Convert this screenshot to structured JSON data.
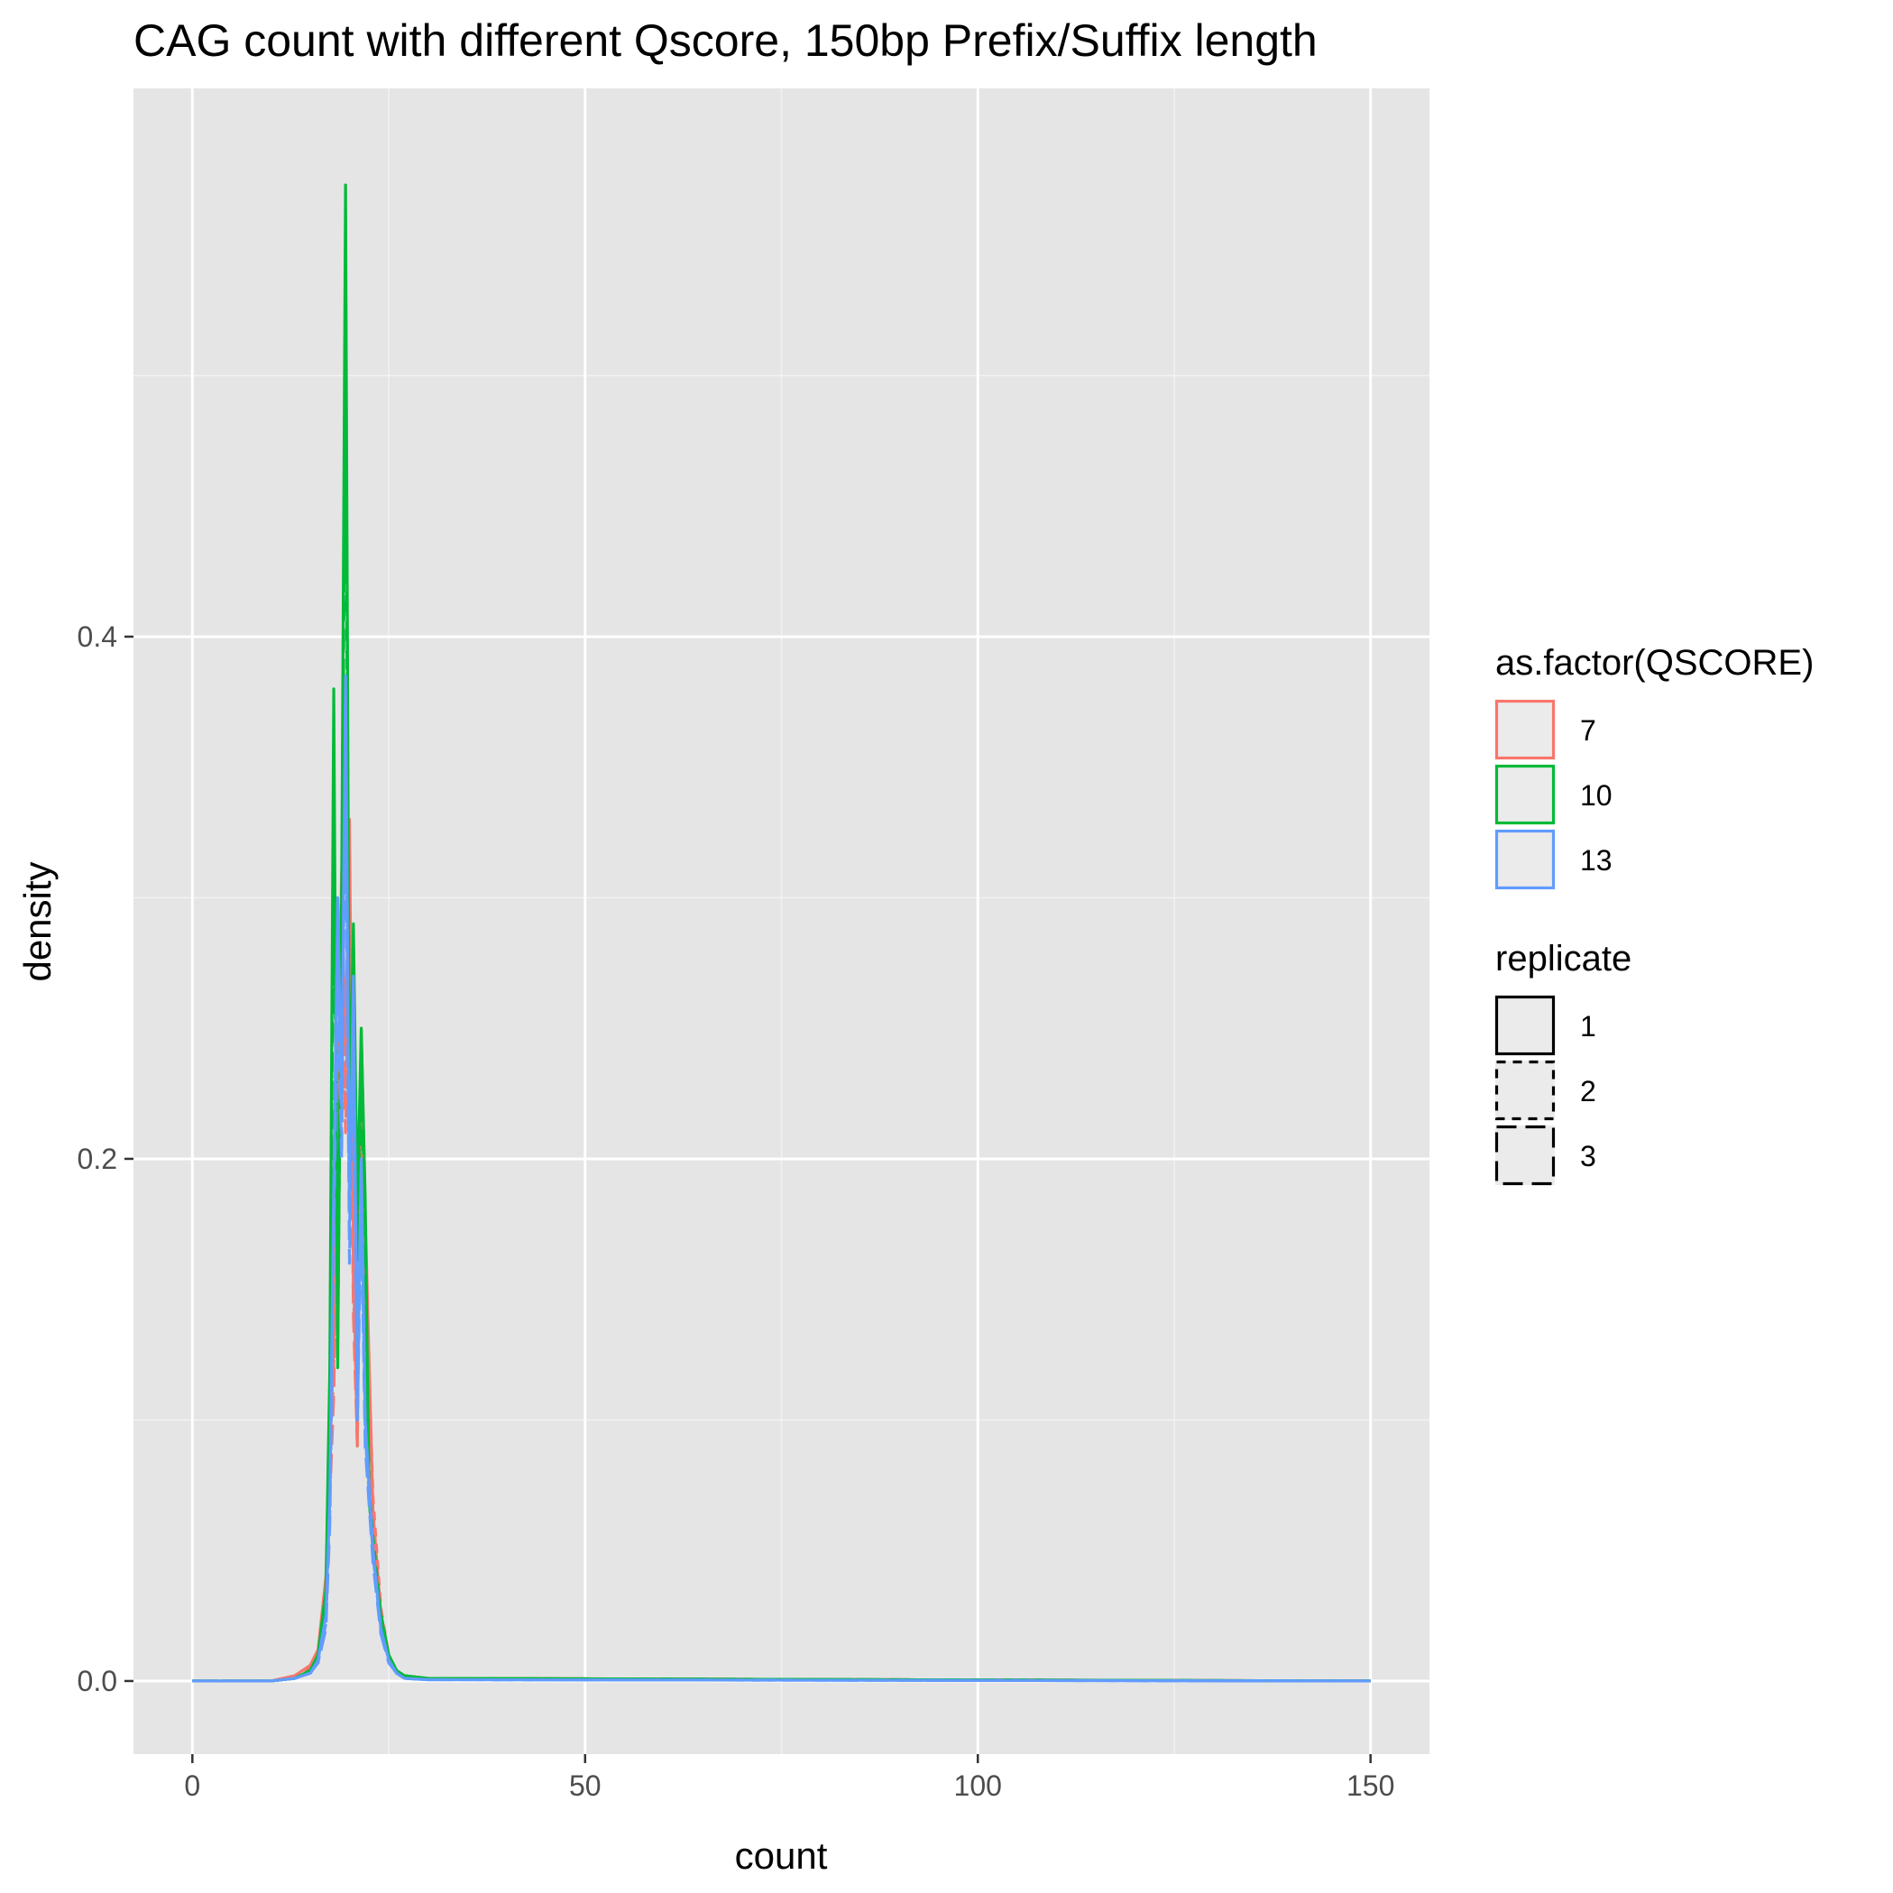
{
  "chart_data": {
    "type": "line",
    "title": "CAG count with different Qscore, 150bp Prefix/Suffix length",
    "xlabel": "count",
    "ylabel": "density",
    "xlim": [
      -7.5,
      157.5
    ],
    "ylim": [
      -0.028,
      0.61
    ],
    "x_ticks": [
      0,
      50,
      100,
      150
    ],
    "x_tick_labels": [
      "0",
      "50",
      "100",
      "150"
    ],
    "y_ticks": [
      0.0,
      0.2,
      0.4
    ],
    "y_tick_labels": [
      "0.0",
      "0.2",
      "0.4"
    ],
    "grid": true,
    "legend_position": "right",
    "legends": [
      {
        "title": "as.factor(QSCORE)",
        "kind": "color",
        "entries": [
          {
            "label": "7",
            "color": "#F8766D"
          },
          {
            "label": "10",
            "color": "#00BA38"
          },
          {
            "label": "13",
            "color": "#619CFF"
          }
        ]
      },
      {
        "title": "replicate",
        "kind": "linetype",
        "entries": [
          {
            "label": "1",
            "dash": "solid"
          },
          {
            "label": "2",
            "dash": "dashed"
          },
          {
            "label": "3",
            "dash": "longdash"
          }
        ]
      }
    ],
    "series": [
      {
        "qscore": "7",
        "replicate": "1",
        "color": "#F8766D",
        "dash": "solid",
        "x": [
          0,
          10,
          13,
          15,
          16,
          17,
          18,
          19,
          19.5,
          20,
          20.5,
          21,
          21.5,
          22,
          23,
          24,
          25,
          26,
          27,
          30,
          150
        ],
        "y": [
          0,
          0,
          0.002,
          0.006,
          0.012,
          0.04,
          0.13,
          0.31,
          0.24,
          0.33,
          0.16,
          0.09,
          0.25,
          0.18,
          0.065,
          0.025,
          0.009,
          0.004,
          0.002,
          0.001,
          0
        ]
      },
      {
        "qscore": "7",
        "replicate": "2",
        "color": "#F8766D",
        "dash": "dashed",
        "x": [
          0,
          10,
          13,
          15,
          16,
          17,
          18,
          19,
          19.5,
          20,
          20.5,
          21,
          21.5,
          22,
          23,
          24,
          25,
          26,
          27,
          30,
          150
        ],
        "y": [
          0,
          0,
          0.002,
          0.005,
          0.011,
          0.035,
          0.12,
          0.29,
          0.22,
          0.31,
          0.15,
          0.095,
          0.23,
          0.17,
          0.07,
          0.028,
          0.01,
          0.004,
          0.002,
          0.001,
          0
        ]
      },
      {
        "qscore": "7",
        "replicate": "3",
        "color": "#F8766D",
        "dash": "longdash",
        "x": [
          0,
          10,
          13,
          15,
          16,
          17,
          18,
          19,
          19.5,
          20,
          20.5,
          21,
          21.5,
          22,
          23,
          24,
          25,
          26,
          27,
          30,
          150
        ],
        "y": [
          0,
          0,
          0.002,
          0.005,
          0.01,
          0.03,
          0.11,
          0.28,
          0.21,
          0.3,
          0.14,
          0.09,
          0.22,
          0.16,
          0.06,
          0.024,
          0.008,
          0.003,
          0.002,
          0.001,
          0
        ]
      },
      {
        "qscore": "10",
        "replicate": "1",
        "color": "#00BA38",
        "dash": "solid",
        "x": [
          0,
          10,
          13,
          15,
          16,
          17,
          17.5,
          18,
          18.5,
          19,
          19.5,
          20,
          20.5,
          21,
          21.5,
          22,
          22.5,
          23,
          24,
          25,
          26,
          27,
          30,
          150
        ],
        "y": [
          0,
          0,
          0.001,
          0.004,
          0.01,
          0.035,
          0.12,
          0.38,
          0.12,
          0.3,
          0.573,
          0.21,
          0.29,
          0.18,
          0.25,
          0.185,
          0.07,
          0.05,
          0.025,
          0.01,
          0.004,
          0.002,
          0.001,
          0
        ]
      },
      {
        "qscore": "10",
        "replicate": "2",
        "color": "#00BA38",
        "dash": "dashed",
        "x": [
          0,
          10,
          13,
          15,
          16,
          17,
          17.5,
          18,
          18.5,
          19,
          19.5,
          20,
          20.5,
          21,
          21.5,
          22,
          22.5,
          23,
          24,
          25,
          26,
          27,
          30,
          150
        ],
        "y": [
          0,
          0,
          0.001,
          0.004,
          0.009,
          0.03,
          0.11,
          0.35,
          0.13,
          0.29,
          0.53,
          0.22,
          0.28,
          0.17,
          0.24,
          0.17,
          0.075,
          0.055,
          0.026,
          0.01,
          0.004,
          0.002,
          0.001,
          0
        ]
      },
      {
        "qscore": "10",
        "replicate": "3",
        "color": "#00BA38",
        "dash": "longdash",
        "x": [
          0,
          10,
          13,
          15,
          16,
          17,
          17.5,
          18,
          18.5,
          19,
          19.5,
          20,
          20.5,
          21,
          21.5,
          22,
          22.5,
          23,
          24,
          25,
          26,
          27,
          30,
          150
        ],
        "y": [
          0,
          0,
          0.001,
          0.004,
          0.009,
          0.03,
          0.1,
          0.33,
          0.14,
          0.28,
          0.5,
          0.2,
          0.27,
          0.16,
          0.23,
          0.16,
          0.07,
          0.05,
          0.024,
          0.009,
          0.004,
          0.002,
          0.001,
          0
        ]
      },
      {
        "qscore": "13",
        "replicate": "1",
        "color": "#619CFF",
        "dash": "solid",
        "x": [
          0,
          10,
          13,
          15,
          16,
          17,
          17.5,
          18,
          18.5,
          19,
          19.5,
          20,
          20.5,
          21,
          21.5,
          22,
          23,
          24,
          25,
          26,
          27,
          30,
          150
        ],
        "y": [
          0,
          0,
          0.001,
          0.003,
          0.008,
          0.025,
          0.07,
          0.19,
          0.3,
          0.22,
          0.385,
          0.18,
          0.27,
          0.11,
          0.2,
          0.1,
          0.05,
          0.02,
          0.008,
          0.003,
          0.001,
          0.0005,
          0
        ]
      },
      {
        "qscore": "13",
        "replicate": "2",
        "color": "#619CFF",
        "dash": "dashed",
        "x": [
          0,
          10,
          13,
          15,
          16,
          17,
          17.5,
          18,
          18.5,
          19,
          19.5,
          20,
          20.5,
          21,
          21.5,
          22,
          23,
          24,
          25,
          26,
          27,
          30,
          150
        ],
        "y": [
          0,
          0,
          0.001,
          0.003,
          0.007,
          0.022,
          0.065,
          0.18,
          0.28,
          0.21,
          0.36,
          0.17,
          0.26,
          0.1,
          0.19,
          0.095,
          0.048,
          0.019,
          0.007,
          0.003,
          0.001,
          0.0005,
          0
        ]
      },
      {
        "qscore": "13",
        "replicate": "3",
        "color": "#619CFF",
        "dash": "longdash",
        "x": [
          0,
          10,
          13,
          15,
          16,
          17,
          17.5,
          18,
          18.5,
          19,
          19.5,
          20,
          20.5,
          21,
          21.5,
          22,
          23,
          24,
          25,
          26,
          27,
          30,
          150
        ],
        "y": [
          0,
          0,
          0.001,
          0.003,
          0.007,
          0.02,
          0.06,
          0.17,
          0.27,
          0.2,
          0.35,
          0.16,
          0.25,
          0.1,
          0.18,
          0.09,
          0.045,
          0.018,
          0.007,
          0.003,
          0.001,
          0.0005,
          0
        ]
      }
    ]
  }
}
